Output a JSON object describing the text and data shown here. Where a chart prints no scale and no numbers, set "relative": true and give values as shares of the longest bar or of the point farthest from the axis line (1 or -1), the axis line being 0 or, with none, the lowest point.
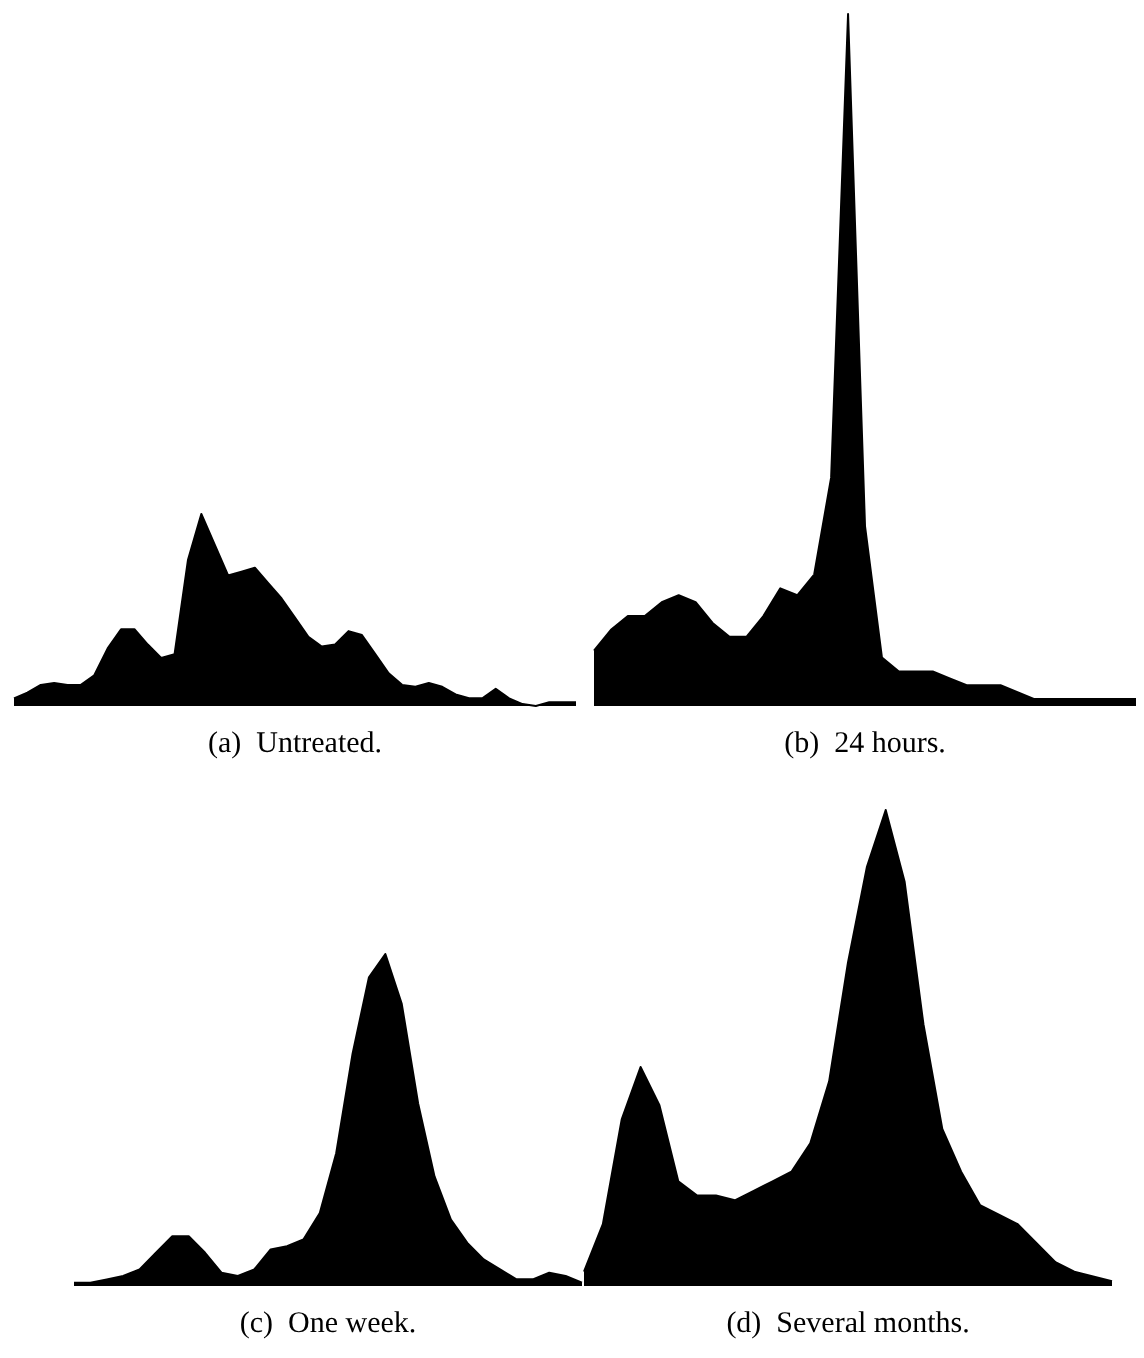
{
  "chart_data": [
    {
      "type": "area",
      "title": "(a)  Untreated.",
      "relative": true,
      "categories": [
        null,
        null,
        null,
        null,
        null,
        null,
        null,
        null,
        null,
        null,
        null,
        null,
        null,
        null,
        null,
        null,
        null,
        null,
        null,
        null,
        null,
        null,
        null,
        null,
        null,
        null,
        null,
        null,
        null,
        null,
        null,
        null,
        null,
        null,
        null,
        null,
        null,
        null,
        null,
        null,
        null,
        null,
        null
      ],
      "series": [
        {
          "color": "#000000",
          "values": [
            0.04,
            0.07,
            0.11,
            0.12,
            0.11,
            0.11,
            0.16,
            0.3,
            0.4,
            0.4,
            0.32,
            0.25,
            0.27,
            0.76,
            1.0,
            0.84,
            0.68,
            0.7,
            0.72,
            0.64,
            0.56,
            0.46,
            0.36,
            0.31,
            0.32,
            0.39,
            0.37,
            0.27,
            0.17,
            0.11,
            0.1,
            0.12,
            0.1,
            0.06,
            0.04,
            0.04,
            0.09,
            0.04,
            0.01,
            0.0,
            0.02,
            0.02,
            0.02
          ]
        }
      ]
    },
    {
      "type": "area",
      "title": "(b)  24 hours.",
      "relative": true,
      "categories": [
        null,
        null,
        null,
        null,
        null,
        null,
        null,
        null,
        null,
        null,
        null,
        null,
        null,
        null,
        null,
        null,
        null,
        null,
        null,
        null,
        null,
        null,
        null,
        null,
        null,
        null,
        null,
        null,
        null,
        null,
        null,
        null,
        null
      ],
      "series": [
        {
          "color": "#000000",
          "values": [
            0.08,
            0.11,
            0.13,
            0.13,
            0.15,
            0.16,
            0.15,
            0.12,
            0.1,
            0.1,
            0.13,
            0.17,
            0.16,
            0.19,
            0.33,
            1.0,
            0.26,
            0.07,
            0.05,
            0.05,
            0.05,
            0.04,
            0.03,
            0.03,
            0.03,
            0.02,
            0.01,
            0.01,
            0.01,
            0.01,
            0.01,
            0.01,
            0.01
          ]
        }
      ]
    },
    {
      "type": "area",
      "title": "(c)  One week.",
      "relative": true,
      "categories": [
        null,
        null,
        null,
        null,
        null,
        null,
        null,
        null,
        null,
        null,
        null,
        null,
        null,
        null,
        null,
        null,
        null,
        null,
        null,
        null,
        null,
        null,
        null,
        null,
        null,
        null,
        null,
        null,
        null,
        null,
        null,
        null
      ],
      "series": [
        {
          "color": "#000000",
          "values": [
            0.01,
            0.01,
            0.02,
            0.03,
            0.05,
            0.1,
            0.15,
            0.15,
            0.1,
            0.04,
            0.03,
            0.05,
            0.11,
            0.12,
            0.14,
            0.22,
            0.4,
            0.7,
            0.93,
            1.0,
            0.85,
            0.55,
            0.33,
            0.2,
            0.13,
            0.08,
            0.05,
            0.02,
            0.02,
            0.04,
            0.03,
            0.01
          ]
        }
      ]
    },
    {
      "type": "area",
      "title": "(d)  Several months.",
      "relative": true,
      "categories": [
        null,
        null,
        null,
        null,
        null,
        null,
        null,
        null,
        null,
        null,
        null,
        null,
        null,
        null,
        null,
        null,
        null,
        null,
        null,
        null,
        null,
        null,
        null,
        null,
        null,
        null,
        null,
        null,
        null
      ],
      "series": [
        {
          "color": "#000000",
          "values": [
            0.03,
            0.13,
            0.35,
            0.46,
            0.38,
            0.22,
            0.19,
            0.19,
            0.18,
            0.2,
            0.22,
            0.24,
            0.3,
            0.43,
            0.68,
            0.88,
            1.0,
            0.85,
            0.55,
            0.33,
            0.24,
            0.17,
            0.15,
            0.13,
            0.09,
            0.05,
            0.03,
            0.02,
            0.01
          ]
        }
      ]
    }
  ]
}
